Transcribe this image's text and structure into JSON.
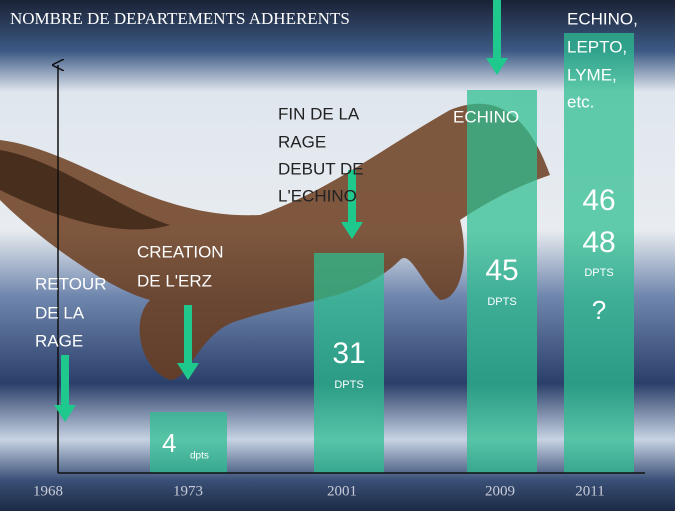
{
  "slide": {
    "title": "NOMBRE DE DEPARTEMENTS ADHERENTS",
    "years": [
      "1968",
      "1973",
      "2001",
      "2009",
      "2011"
    ],
    "annotations": [
      [
        "RETOUR",
        "DE LA",
        "RAGE"
      ],
      [
        "CREATION",
        "DE L'ERZ"
      ],
      [
        "FIN DE LA",
        "RAGE",
        "DEBUT DE",
        "L'ECHINO"
      ],
      [
        "ECHINO"
      ],
      [
        "ECHINO,",
        "LEPTO,",
        "LYME,",
        "etc."
      ]
    ],
    "bars": [
      {
        "year": "1973",
        "labels": [
          "4",
          "dpts"
        ]
      },
      {
        "year": "2001",
        "labels": [
          "31",
          "DPTS"
        ]
      },
      {
        "year": "2009",
        "labels": [
          "45",
          "DPTS"
        ]
      },
      {
        "year": "2011",
        "labels": [
          "46",
          "48",
          "DPTS",
          "?"
        ]
      }
    ]
  }
}
